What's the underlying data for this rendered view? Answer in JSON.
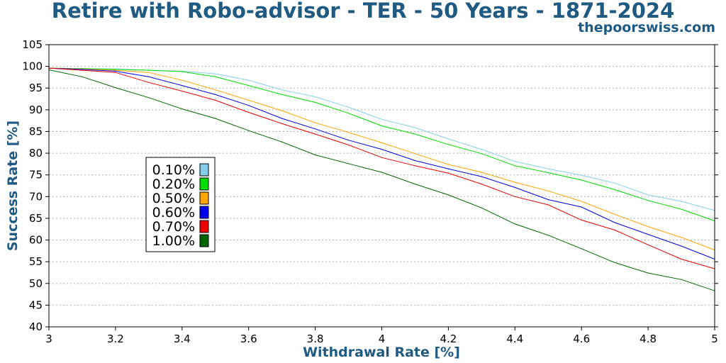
{
  "header": {
    "title": "Retire with Robo-advisor - TER - 50 Years - 1871-2024",
    "site": "thepoorswiss.com"
  },
  "chart_data": {
    "type": "line",
    "title": "Retire with Robo-advisor - TER - 50 Years - 1871-2024",
    "xlabel": "Withdrawal Rate [%]",
    "ylabel": "Success Rate [%]",
    "xlim": [
      3,
      5
    ],
    "ylim": [
      40,
      105
    ],
    "x_ticks": [
      "3",
      "3.2",
      "3.4",
      "3.6",
      "3.8",
      "4",
      "4.2",
      "4.4",
      "4.6",
      "4.8",
      "5"
    ],
    "y_ticks": [
      "40",
      "45",
      "50",
      "55",
      "60",
      "65",
      "70",
      "75",
      "80",
      "85",
      "90",
      "95",
      "100",
      "105"
    ],
    "grid": "horizontal dotted",
    "legend_position": "center-left",
    "x": [
      3.0,
      3.1,
      3.2,
      3.3,
      3.4,
      3.5,
      3.6,
      3.7,
      3.8,
      3.9,
      4.0,
      4.1,
      4.2,
      4.3,
      4.4,
      4.5,
      4.6,
      4.7,
      4.8,
      4.9,
      5.0
    ],
    "series": [
      {
        "name": "0.10%",
        "color": "#87ceeb",
        "values": [
          99.6,
          99.5,
          99.4,
          99.1,
          98.9,
          98.3,
          96.8,
          94.6,
          93.0,
          90.6,
          87.8,
          85.9,
          83.3,
          80.9,
          78.1,
          76.4,
          74.9,
          73.1,
          70.4,
          68.9,
          66.8
        ]
      },
      {
        "name": "0.20%",
        "color": "#00dd00",
        "values": [
          99.6,
          99.5,
          99.3,
          99.1,
          98.8,
          97.6,
          95.6,
          93.5,
          91.7,
          89.2,
          86.3,
          84.4,
          82.0,
          79.9,
          77.1,
          75.5,
          73.8,
          71.6,
          69.1,
          67.1,
          64.4
        ]
      },
      {
        "name": "0.50%",
        "color": "#ffa500",
        "values": [
          99.6,
          99.4,
          99.1,
          98.6,
          96.8,
          94.6,
          92.2,
          89.8,
          87.0,
          84.8,
          82.4,
          79.9,
          77.4,
          75.6,
          73.3,
          71.3,
          68.9,
          65.9,
          63.1,
          60.6,
          57.7
        ]
      },
      {
        "name": "0.60%",
        "color": "#0000ee",
        "values": [
          99.6,
          99.3,
          98.9,
          97.6,
          95.6,
          93.5,
          91.0,
          88.0,
          85.6,
          83.0,
          80.9,
          78.3,
          76.4,
          74.6,
          72.1,
          69.3,
          67.6,
          64.0,
          61.3,
          58.6,
          55.6
        ]
      },
      {
        "name": "0.70%",
        "color": "#ee0000",
        "values": [
          99.6,
          99.1,
          98.6,
          96.3,
          94.3,
          92.2,
          89.4,
          86.8,
          84.4,
          81.9,
          79.0,
          77.1,
          75.4,
          72.9,
          70.0,
          68.1,
          64.6,
          62.3,
          58.9,
          55.6,
          53.4
        ]
      },
      {
        "name": "1.00%",
        "color": "#006400",
        "values": [
          99.2,
          97.6,
          95.1,
          92.8,
          90.2,
          88.0,
          85.2,
          82.6,
          79.6,
          77.6,
          75.6,
          72.9,
          70.4,
          67.4,
          63.7,
          61.1,
          58.0,
          54.8,
          52.4,
          50.9,
          48.3
        ]
      }
    ]
  }
}
